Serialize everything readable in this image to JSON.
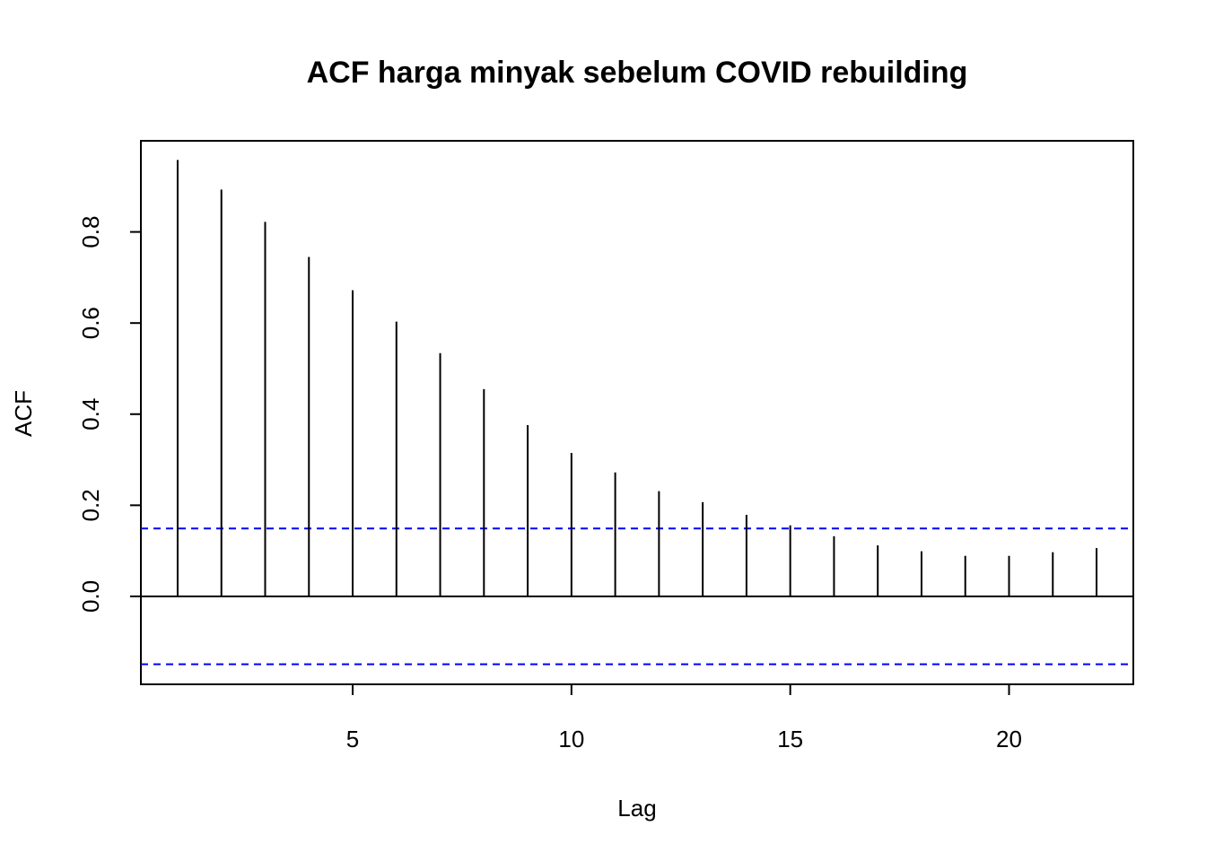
{
  "chart_data": {
    "type": "acf",
    "title": "ACF harga minyak sebelum COVID rebuilding",
    "x_label": "Lag",
    "y_label": "ACF",
    "x": [
      1,
      2,
      3,
      4,
      5,
      6,
      7,
      8,
      9,
      10,
      11,
      12,
      13,
      14,
      15,
      16,
      17,
      18,
      19,
      20,
      21,
      22
    ],
    "values": [
      0.958,
      0.893,
      0.822,
      0.745,
      0.672,
      0.603,
      0.534,
      0.455,
      0.376,
      0.315,
      0.272,
      0.231,
      0.207,
      0.179,
      0.156,
      0.132,
      0.112,
      0.099,
      0.089,
      0.089,
      0.097,
      0.106
    ],
    "color": "#000000",
    "conf_limits": [
      0.149,
      -0.149
    ],
    "conf_color": "#0000ff",
    "xlim": [
      0.16,
      22.84
    ],
    "ylim": [
      -0.193,
      1.0
    ],
    "xticks": [
      5,
      10,
      15,
      20
    ],
    "yticks": [
      {
        "value": 0,
        "label": "0.0"
      },
      0.2,
      0.4,
      0.6,
      0.8
    ]
  }
}
